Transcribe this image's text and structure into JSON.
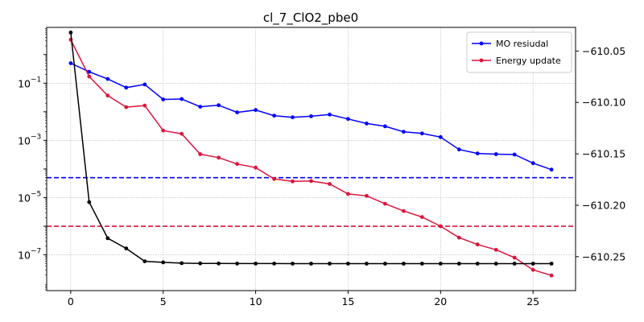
{
  "chart_data": {
    "type": "line",
    "title": "cl_7_ClO2_pbe0",
    "xlabel": "",
    "ylabel_left": "",
    "ylabel_right": "",
    "x": [
      0,
      1,
      2,
      3,
      4,
      5,
      6,
      7,
      8,
      9,
      10,
      11,
      12,
      13,
      14,
      15,
      16,
      17,
      18,
      19,
      20,
      21,
      22,
      23,
      24,
      25,
      26
    ],
    "xlim": [
      -1.3,
      27.3
    ],
    "x_ticks": [
      0,
      5,
      10,
      15,
      20,
      25
    ],
    "left_axis": {
      "scale": "log",
      "ylim_exp": [
        -8.25,
        0.95
      ],
      "tick_exponents": [
        -7,
        -5,
        -3,
        -1
      ],
      "tick_labels": [
        "10",
        "10",
        "10",
        "10"
      ],
      "tick_label_exponents": [
        "−7",
        "−5",
        "−3",
        "−1"
      ]
    },
    "right_axis": {
      "scale": "linear",
      "ylim": [
        -610.283,
        -610.027
      ],
      "ticks": [
        -610.25,
        -610.2,
        -610.15,
        -610.1,
        -610.05
      ],
      "tick_labels": [
        "−610.25",
        "−610.20",
        "−610.15",
        "−610.10",
        "−610.05"
      ]
    },
    "grid": true,
    "legend_position": "top-right",
    "series": [
      {
        "name": "MO resiudal",
        "axis": "left",
        "color": "#0000ff",
        "values": [
          0.5,
          0.25,
          0.14,
          0.07,
          0.09,
          0.027,
          0.028,
          0.015,
          0.017,
          0.0095,
          0.0115,
          0.0073,
          0.0064,
          0.007,
          0.008,
          0.0056,
          0.0039,
          0.0031,
          0.002,
          0.00175,
          0.0013,
          0.00048,
          0.00035,
          0.00033,
          0.00032,
          0.00016,
          9.5e-05
        ]
      },
      {
        "name": "Energy update",
        "axis": "left",
        "color": "#dc143c",
        "values": [
          3.3,
          0.17,
          0.037,
          0.0145,
          0.0165,
          0.0022,
          0.0017,
          0.00033,
          0.00025,
          0.00015,
          0.000112,
          4.5e-05,
          3.7e-05,
          3.8e-05,
          3e-05,
          1.35e-05,
          1.15e-05,
          6.1e-06,
          3.4e-06,
          2.1e-06,
          1e-06,
          4e-07,
          2.3e-07,
          1.5e-07,
          8e-08,
          3e-08,
          1.9e-08
        ]
      },
      {
        "name": "",
        "axis": "right",
        "color": "#000000",
        "values": [
          -610.032,
          -610.197,
          -610.232,
          -610.242,
          -610.2545,
          -610.2555,
          -610.2563,
          -610.2565,
          -610.2566,
          -610.2567,
          -610.2567,
          -610.2567,
          -610.2568,
          -610.2568,
          -610.2568,
          -610.2568,
          -610.2568,
          -610.2568,
          -610.2568,
          -610.2568,
          -610.2568,
          -610.2568,
          -610.2568,
          -610.2568,
          -610.2568,
          -610.2568,
          -610.2568
        ]
      }
    ],
    "hlines": [
      {
        "axis": "left",
        "value": 5e-05,
        "color": "#0000ff",
        "style": "dashed"
      },
      {
        "axis": "left",
        "value": 1e-06,
        "color": "#dc143c",
        "style": "dashed"
      }
    ]
  }
}
